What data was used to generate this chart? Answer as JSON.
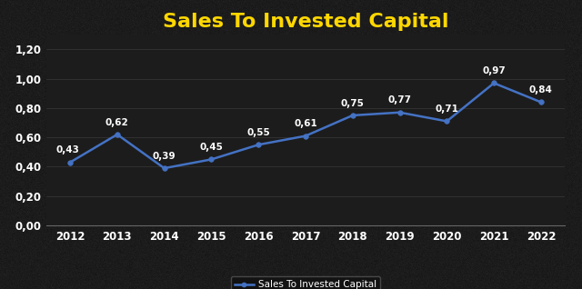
{
  "title": "Sales To Invested Capital",
  "title_color": "#FFD700",
  "title_fontsize": 16,
  "title_fontweight": "bold",
  "years": [
    2012,
    2013,
    2014,
    2015,
    2016,
    2017,
    2018,
    2019,
    2020,
    2021,
    2022
  ],
  "values": [
    0.43,
    0.62,
    0.39,
    0.45,
    0.55,
    0.61,
    0.75,
    0.77,
    0.71,
    0.97,
    0.84
  ],
  "line_color": "#4472C4",
  "marker_color": "#4472C4",
  "marker_style": "o",
  "marker_size": 4,
  "line_width": 1.8,
  "background_color": "#1c1c1c",
  "plot_bg_color": "#1c1c1c",
  "text_color": "#ffffff",
  "grid_color": "#3a3a3a",
  "ylim": [
    0.0,
    1.3
  ],
  "yticks": [
    0.0,
    0.2,
    0.4,
    0.6,
    0.8,
    1.0,
    1.2
  ],
  "ytick_labels": [
    "0,00",
    "0,20",
    "0,40",
    "0,60",
    "0,80",
    "1,00",
    "1,20"
  ],
  "legend_label": "Sales To Invested Capital",
  "annotation_fontsize": 7.5,
  "annotation_fontweight": "bold",
  "tick_label_fontsize": 8.5,
  "spine_color": "#666666"
}
